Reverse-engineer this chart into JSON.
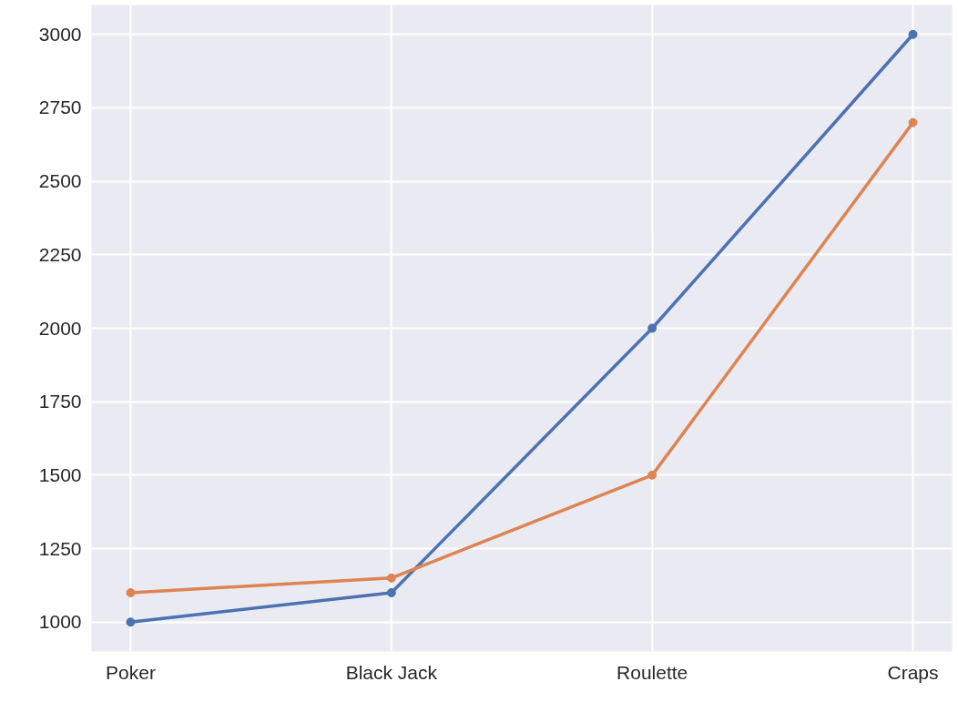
{
  "chart_data": {
    "type": "line",
    "categories": [
      "Poker",
      "Black Jack",
      "Roulette",
      "Craps"
    ],
    "series": [
      {
        "color": "#4c72b0",
        "values": [
          1000,
          1100,
          2000,
          3000
        ]
      },
      {
        "color": "#dd8452",
        "values": [
          1100,
          1150,
          1500,
          2700
        ]
      }
    ],
    "ylim": [
      900,
      3100
    ],
    "yticks": [
      1000,
      1250,
      1500,
      1750,
      2000,
      2250,
      2500,
      2750,
      3000
    ],
    "grid": true,
    "marker": "circle",
    "line_style": "solid"
  }
}
